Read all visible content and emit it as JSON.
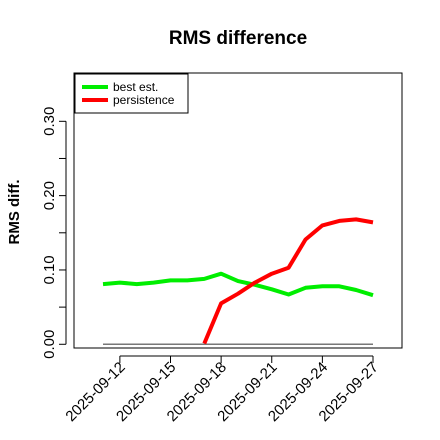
{
  "chart_data": {
    "type": "line",
    "title": "RMS difference",
    "xlabel": "",
    "ylabel": "RMS diff.",
    "x": [
      "2025-09-11",
      "2025-09-12",
      "2025-09-13",
      "2025-09-14",
      "2025-09-15",
      "2025-09-16",
      "2025-09-17",
      "2025-09-18",
      "2025-09-19",
      "2025-09-20",
      "2025-09-21",
      "2025-09-22",
      "2025-09-23",
      "2025-09-24",
      "2025-09-25",
      "2025-09-26",
      "2025-09-27"
    ],
    "x_tick_labels": [
      "2025-09-12",
      "2025-09-15",
      "2025-09-18",
      "2025-09-21",
      "2025-09-24",
      "2025-09-27"
    ],
    "y_ticks": [
      "0.00",
      "0.10",
      "0.20",
      "0.30"
    ],
    "ylim": [
      -0.005,
      0.365
    ],
    "grid": false,
    "legend_position": "top-left",
    "series": [
      {
        "name": "best est.",
        "color": "#00ee00",
        "values": [
          0.081,
          0.083,
          0.081,
          0.083,
          0.086,
          0.086,
          0.088,
          0.095,
          0.085,
          0.08,
          0.074,
          0.067,
          0.076,
          0.078,
          0.078,
          0.073,
          0.066
        ]
      },
      {
        "name": "persistence",
        "color": "#ff0000",
        "values": [
          null,
          null,
          null,
          null,
          null,
          null,
          0.001,
          0.055,
          0.068,
          0.083,
          0.095,
          0.103,
          0.141,
          0.16,
          0.166,
          0.168,
          0.164
        ]
      },
      {
        "name": "",
        "color": "#777777",
        "values": [
          0,
          0,
          0,
          0,
          0,
          0,
          0,
          0,
          0,
          0,
          0,
          0,
          0,
          0,
          0,
          0,
          0
        ]
      }
    ]
  }
}
